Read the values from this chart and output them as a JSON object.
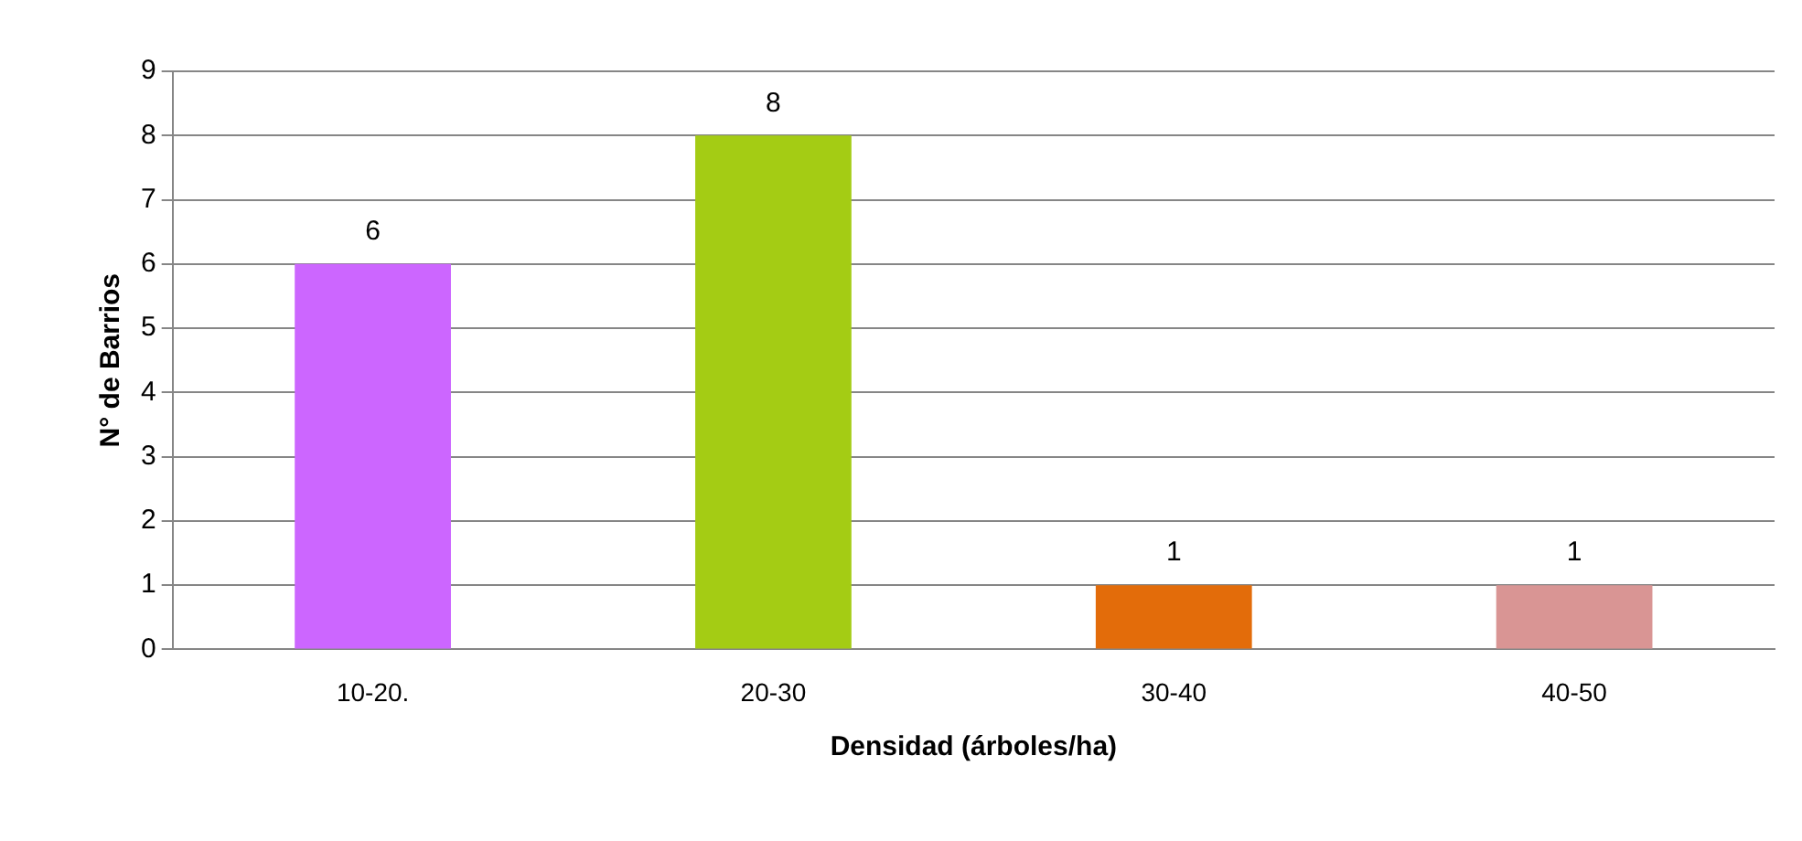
{
  "chart_data": {
    "type": "bar",
    "xlabel": "Densidad (árboles/ha)",
    "ylabel": "N° de Barrios",
    "categories": [
      "10-20.",
      "20-30",
      "30-40",
      "40-50"
    ],
    "values": [
      6,
      8,
      1,
      1
    ],
    "colors": [
      "#cc66ff",
      "#a4cc14",
      "#e36c0a",
      "#d99594"
    ],
    "ylim": [
      0,
      9
    ],
    "yticks": [
      0,
      1,
      2,
      3,
      4,
      5,
      6,
      7,
      8,
      9
    ],
    "grid": "y",
    "data_labels": true,
    "legend": false
  }
}
